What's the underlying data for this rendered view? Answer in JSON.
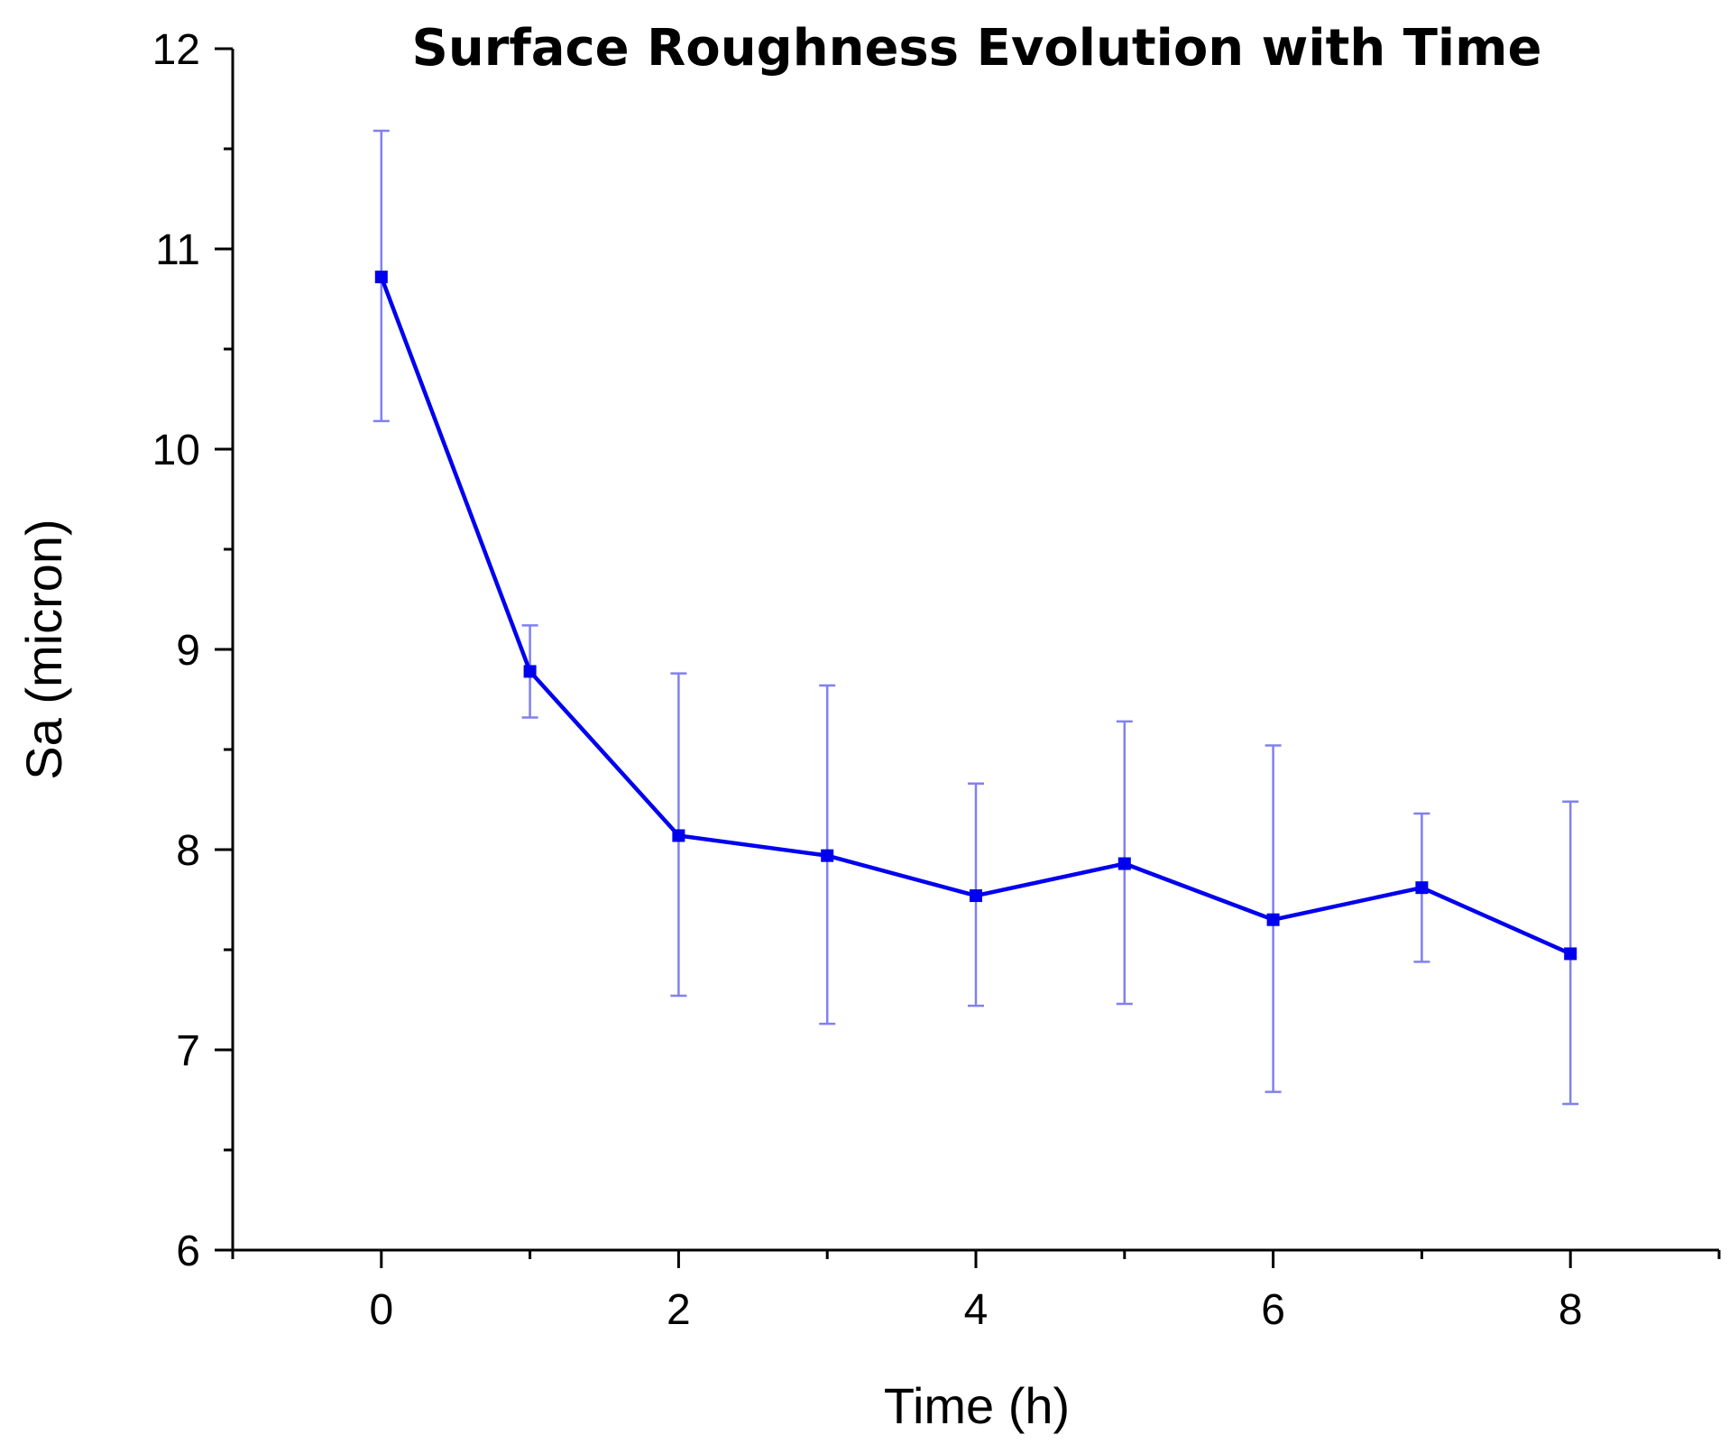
{
  "chart_data": {
    "type": "line",
    "title": "Surface Roughness Evolution with Time",
    "xlabel": "Time (h)",
    "ylabel": "Sa (micron)",
    "xlim": [
      -1,
      9
    ],
    "ylim": [
      6,
      12
    ],
    "x_ticks": [
      "0",
      "2",
      "4",
      "6",
      "8"
    ],
    "y_ticks": [
      "6",
      "7",
      "8",
      "9",
      "10",
      "11",
      "12"
    ],
    "grid": false,
    "legend": "none",
    "colors": {
      "line": "#0000ee",
      "error_bar": "#8080f0",
      "axis": "#000000"
    },
    "series": [
      {
        "name": "Sa",
        "x": [
          0,
          1,
          2,
          3,
          4,
          5,
          6,
          7,
          8
        ],
        "y": [
          10.86,
          8.89,
          8.07,
          7.97,
          7.77,
          7.93,
          7.65,
          7.81,
          7.48
        ],
        "err_low": [
          10.14,
          8.66,
          7.27,
          7.13,
          7.22,
          7.23,
          6.79,
          7.44,
          6.73
        ],
        "err_high": [
          11.59,
          9.12,
          8.88,
          8.82,
          8.33,
          8.64,
          8.52,
          8.18,
          8.24
        ]
      }
    ]
  }
}
